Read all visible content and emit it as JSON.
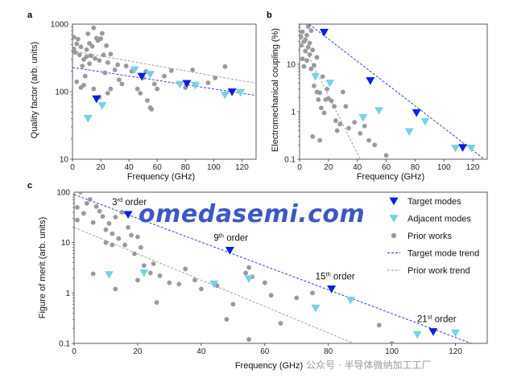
{
  "colors": {
    "target": "#0a1fe0",
    "adjacent": "#7ccfe8",
    "prior": "#9a9a9a",
    "target_trend": "#1a2fd6",
    "prior_trend": "#9a9a9a",
    "watermark": "#3a58c9"
  },
  "watermark": {
    "main": "omedasemi.com",
    "secondary": "公众号 · 半导体微纳加工工厂"
  },
  "chart_data": [
    {
      "panel": "a",
      "type": "scatter",
      "xlabel": "Frequency (GHz)",
      "ylabel": "Quality factor (arb. units)",
      "xlim": [
        0,
        130
      ],
      "ylim": [
        10,
        1000
      ],
      "yscale": "log",
      "xticks": [
        0,
        20,
        40,
        60,
        80,
        100,
        120
      ],
      "yticks": [
        10,
        100,
        1000
      ],
      "yticklabels": [
        "10",
        "100",
        "1000"
      ],
      "series": [
        {
          "role": "target",
          "points": [
            [
              17,
              78
            ],
            [
              49,
              168
            ],
            [
              81,
              132
            ],
            [
              113,
              99
            ]
          ]
        },
        {
          "role": "adjacent",
          "points": [
            [
              11,
              40
            ],
            [
              21,
              62
            ],
            [
              44,
              210
            ],
            [
              55,
              180
            ],
            [
              76,
              128
            ],
            [
              87,
              124
            ],
            [
              108,
              89
            ],
            [
              119,
              97
            ]
          ]
        },
        {
          "role": "prior",
          "points": [
            [
              1,
              640
            ],
            [
              1,
              430
            ],
            [
              2,
              380
            ],
            [
              3,
              510
            ],
            [
              4,
              600
            ],
            [
              5,
              350
            ],
            [
              6,
              460
            ],
            [
              7,
              240
            ],
            [
              8,
              300
            ],
            [
              9,
              170
            ],
            [
              10,
              420
            ],
            [
              10,
              330
            ],
            [
              11,
              720
            ],
            [
              12,
              520
            ],
            [
              12,
              260
            ],
            [
              13,
              340
            ],
            [
              14,
              470
            ],
            [
              15,
              880
            ],
            [
              16,
              310
            ],
            [
              17,
              620
            ],
            [
              18,
              570
            ],
            [
              19,
              290
            ],
            [
              20,
              610
            ],
            [
              21,
              730
            ],
            [
              22,
              350
            ],
            [
              23,
              190
            ],
            [
              24,
              480
            ],
            [
              25,
              270
            ],
            [
              27,
              360
            ],
            [
              30,
              210
            ],
            [
              32,
              250
            ],
            [
              33,
              150
            ],
            [
              35,
              130
            ],
            [
              38,
              240
            ],
            [
              42,
              200
            ],
            [
              46,
              110
            ],
            [
              48,
              95
            ],
            [
              50,
              160
            ],
            [
              52,
              200
            ],
            [
              53,
              74
            ],
            [
              55,
              58
            ],
            [
              56,
              55
            ],
            [
              58,
              130
            ],
            [
              60,
              110
            ],
            [
              65,
              170
            ],
            [
              70,
              205
            ],
            [
              80,
              115
            ],
            [
              85,
              210
            ],
            [
              96,
              135
            ],
            [
              101,
              160
            ],
            [
              108,
              235
            ],
            [
              3,
              140
            ],
            [
              6,
              115
            ],
            [
              8,
              125
            ],
            [
              15,
              110
            ],
            [
              19,
              83
            ],
            [
              25,
              95
            ],
            [
              27,
              110
            ]
          ]
        },
        {
          "role": "target_trend",
          "line": [
            [
              0,
              228
            ],
            [
              130,
              88
            ]
          ]
        },
        {
          "role": "prior_trend",
          "line": [
            [
              0,
              400
            ],
            [
              130,
              133
            ]
          ]
        }
      ]
    },
    {
      "panel": "b",
      "type": "scatter",
      "xlabel": "Frequency (GHz)",
      "ylabel": "Electromechanical coupling (%)",
      "xlim": [
        0,
        130
      ],
      "ylim": [
        0.1,
        70
      ],
      "yscale": "log",
      "xticks": [
        0,
        20,
        40,
        60,
        80,
        100,
        120
      ],
      "yticks": [
        0.1,
        1,
        10
      ],
      "yticklabels": [
        "0.1",
        "1",
        "10"
      ],
      "series": [
        {
          "role": "target",
          "points": [
            [
              17,
              47
            ],
            [
              49,
              4.5
            ],
            [
              81,
              0.95
            ],
            [
              113,
              0.175
            ]
          ]
        },
        {
          "role": "adjacent",
          "points": [
            [
              11,
              5.5
            ],
            [
              21,
              4.0
            ],
            [
              44,
              0.75
            ],
            [
              55,
              1.05
            ],
            [
              76,
              0.38
            ],
            [
              87,
              0.62
            ],
            [
              108,
              0.17
            ],
            [
              119,
              0.17
            ]
          ]
        },
        {
          "role": "prior",
          "points": [
            [
              1,
              25
            ],
            [
              1,
              38
            ],
            [
              2,
              13
            ],
            [
              2,
              48
            ],
            [
              3,
              30
            ],
            [
              3,
              9
            ],
            [
              4,
              19
            ],
            [
              4,
              33
            ],
            [
              5,
              41
            ],
            [
              5,
              12
            ],
            [
              6,
              23
            ],
            [
              6,
              62
            ],
            [
              7,
              16
            ],
            [
              7,
              28
            ],
            [
              8,
              8
            ],
            [
              8,
              51
            ],
            [
              9,
              20
            ],
            [
              10,
              9.5
            ],
            [
              10,
              3.5
            ],
            [
              11,
              6
            ],
            [
              12,
              2.6
            ],
            [
              12,
              14
            ],
            [
              13,
              1.8
            ],
            [
              14,
              2.5
            ],
            [
              15,
              1.2
            ],
            [
              16,
              5.5
            ],
            [
              17,
              0.95
            ],
            [
              18,
              1.8
            ],
            [
              19,
              3.0
            ],
            [
              20,
              1.9
            ],
            [
              22,
              1.7
            ],
            [
              24,
              1.3
            ],
            [
              25,
              0.65
            ],
            [
              26,
              0.4
            ],
            [
              28,
              0.55
            ],
            [
              30,
              2.6
            ],
            [
              32,
              1.3
            ],
            [
              38,
              0.6
            ],
            [
              42,
              0.35
            ],
            [
              45,
              0.5
            ],
            [
              48,
              0.25
            ],
            [
              52,
              0.2
            ],
            [
              60,
              0.12
            ],
            [
              9,
              0.3
            ],
            [
              14,
              0.25
            ],
            [
              34,
              0.45
            ]
          ]
        },
        {
          "role": "target_trend",
          "line": [
            [
              0,
              100
            ],
            [
              128,
              0.1
            ]
          ]
        },
        {
          "role": "prior_trend",
          "line": [
            [
              0,
              36
            ],
            [
              42,
              0.1
            ]
          ]
        }
      ]
    },
    {
      "panel": "c",
      "type": "scatter",
      "xlabel": "Frequency (GHz)",
      "ylabel": "Figure of merit (arb. units)",
      "xlim": [
        0,
        130
      ],
      "ylim": [
        0.1,
        100
      ],
      "yscale": "log",
      "xticks": [
        0,
        20,
        40,
        60,
        80,
        100,
        120
      ],
      "yticks": [
        0.1,
        1,
        10,
        100
      ],
      "yticklabels": [
        "0.1",
        "1",
        "10",
        "100"
      ],
      "annotations": [
        {
          "num": "3",
          "sup": "rd",
          "word": " order",
          "x": 17,
          "y": 36
        },
        {
          "num": "9",
          "sup": "th",
          "word": " order",
          "x": 49,
          "y": 7
        },
        {
          "num": "15",
          "sup": "th",
          "word": " order",
          "x": 81,
          "y": 1.2
        },
        {
          "num": "21",
          "sup": "st",
          "word": " order",
          "x": 113,
          "y": 0.17
        }
      ],
      "legend": {
        "position": "top-right",
        "entries": [
          {
            "role": "target",
            "label": "Target modes"
          },
          {
            "role": "adjacent",
            "label": "Adjacent modes"
          },
          {
            "role": "prior",
            "label": "Prior works"
          },
          {
            "role": "target_trend",
            "label": "Target mode trend"
          },
          {
            "role": "prior_trend",
            "label": "Prior work trend"
          }
        ]
      },
      "series": [
        {
          "role": "target",
          "points": [
            [
              17,
              36
            ],
            [
              49,
              7.0
            ],
            [
              81,
              1.2
            ],
            [
              113,
              0.17
            ]
          ]
        },
        {
          "role": "adjacent",
          "points": [
            [
              11,
              2.3
            ],
            [
              22,
              2.5
            ],
            [
              44,
              1.5
            ],
            [
              55,
              1.9
            ],
            [
              76,
              0.5
            ],
            [
              87,
              0.72
            ],
            [
              108,
              0.15
            ],
            [
              120,
              0.16
            ]
          ]
        },
        {
          "role": "prior",
          "points": [
            [
              1,
              28
            ],
            [
              1,
              50
            ],
            [
              2,
              100
            ],
            [
              3,
              38
            ],
            [
              4,
              60
            ],
            [
              5,
              72
            ],
            [
              6,
              25
            ],
            [
              7,
              52
            ],
            [
              8,
              42
            ],
            [
              9,
              33
            ],
            [
              10,
              18
            ],
            [
              10,
              10
            ],
            [
              11,
              24
            ],
            [
              12,
              9
            ],
            [
              12,
              15
            ],
            [
              13,
              32
            ],
            [
              14,
              12
            ],
            [
              15,
              40
            ],
            [
              16,
              9
            ],
            [
              17,
              20
            ],
            [
              18,
              14
            ],
            [
              19,
              6
            ],
            [
              20,
              13
            ],
            [
              21,
              8
            ],
            [
              22,
              3.5
            ],
            [
              24,
              2.5
            ],
            [
              25,
              3.8
            ],
            [
              27,
              2.2
            ],
            [
              30,
              1.6
            ],
            [
              33,
              1.5
            ],
            [
              35,
              3.0
            ],
            [
              38,
              1.8
            ],
            [
              40,
              1.2
            ],
            [
              45,
              1.4
            ],
            [
              50,
              0.6
            ],
            [
              54,
              2.5
            ],
            [
              55,
              3.2
            ],
            [
              56,
              2.1
            ],
            [
              60,
              1.6
            ],
            [
              62,
              0.9
            ],
            [
              65,
              0.25
            ],
            [
              70,
              0.8
            ],
            [
              75,
              1.0
            ],
            [
              48,
              0.3
            ],
            [
              55,
              0.12
            ],
            [
              96,
              0.23
            ],
            [
              100,
              0.1
            ],
            [
              6,
              2.4
            ],
            [
              13,
              1.2
            ],
            [
              20,
              1.8
            ],
            [
              26,
              0.65
            ]
          ]
        },
        {
          "role": "target_trend",
          "line": [
            [
              0,
              90
            ],
            [
              125,
              0.1
            ]
          ]
        },
        {
          "role": "prior_trend",
          "line": [
            [
              0,
              20
            ],
            [
              88,
              0.1
            ]
          ]
        }
      ]
    }
  ]
}
